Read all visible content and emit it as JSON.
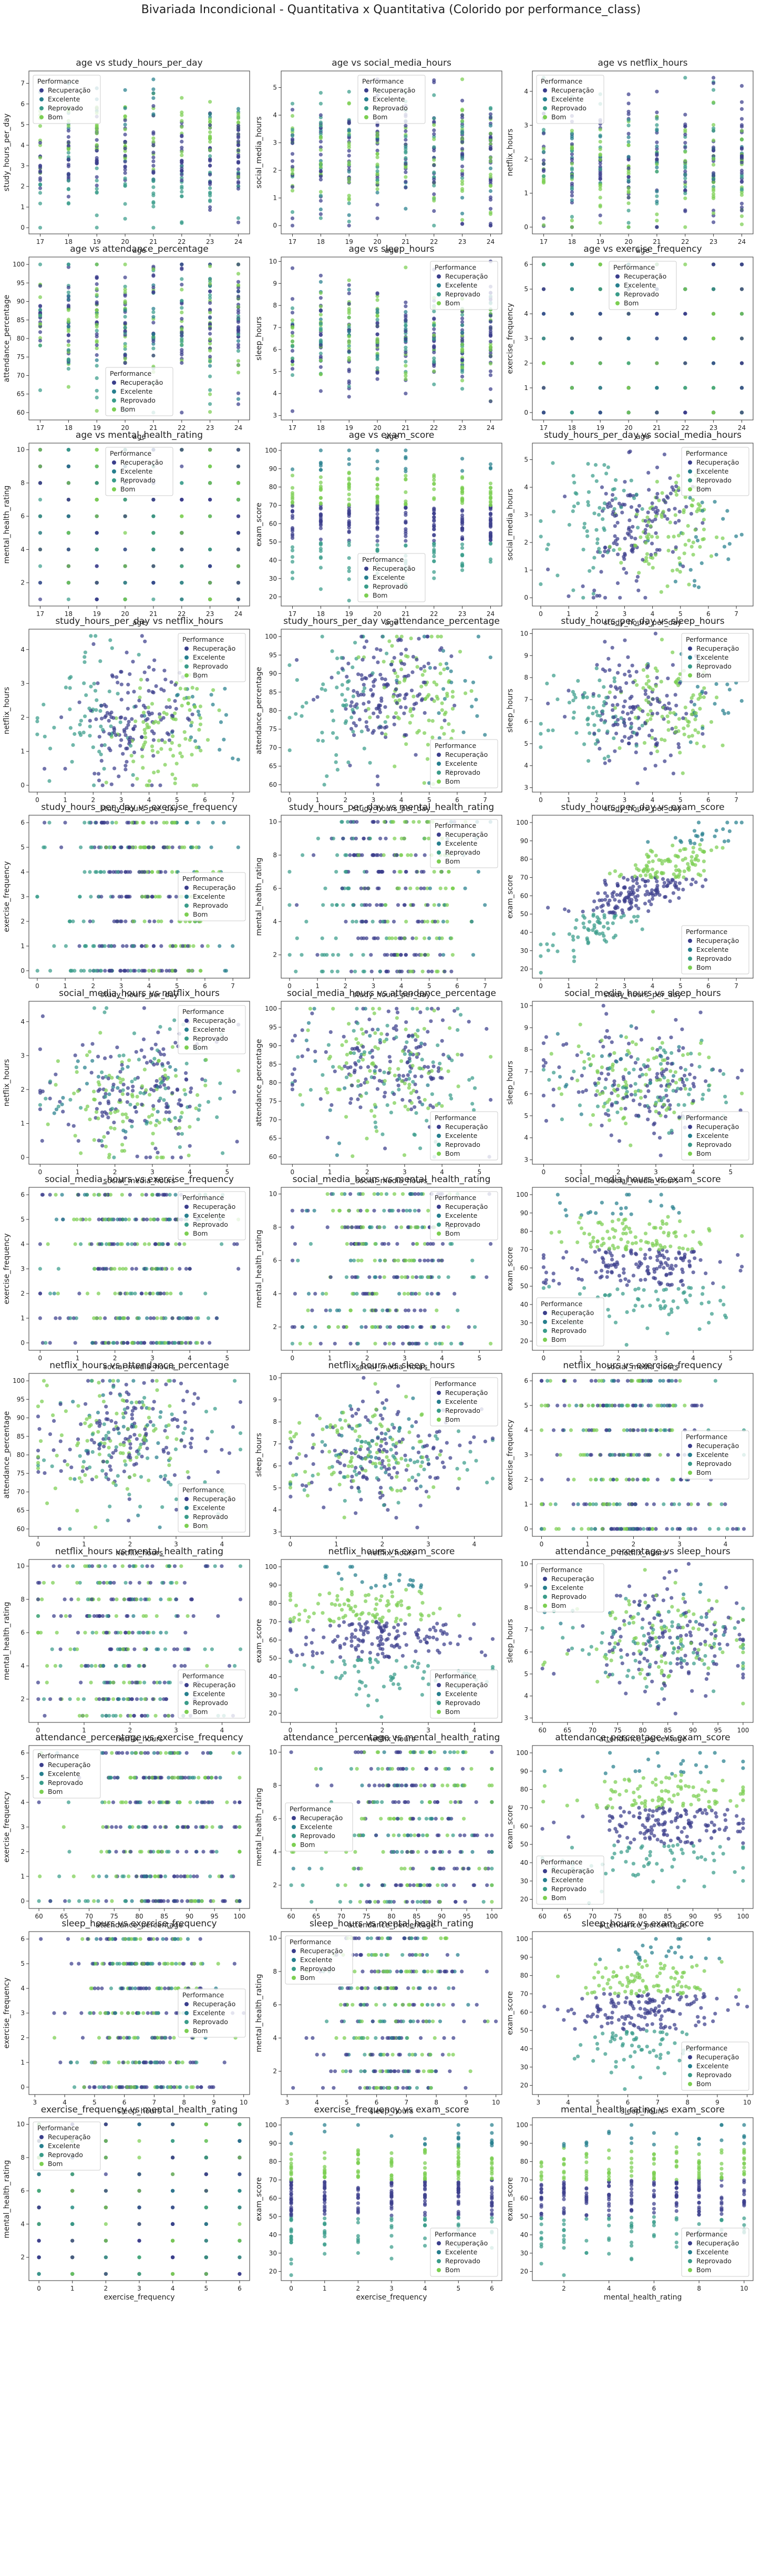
{
  "figure": {
    "title": "Bivariada Incondicional - Quantitativa x Quantitativa (Colorido por performance_class)"
  },
  "legend": {
    "title": "Performance",
    "classes": [
      "Recuperação",
      "Excelente",
      "Reprovado",
      "Bom"
    ],
    "colors": {
      "Recuperação": "#3b3f8c",
      "Excelente": "#277f8e",
      "Reprovado": "#3a9c8a",
      "Bom": "#7ccf52"
    }
  },
  "variables": {
    "age": {
      "ticks": [
        17,
        18,
        19,
        20,
        21,
        22,
        23,
        24
      ],
      "range": [
        16.6,
        24.4
      ]
    },
    "study_hours_per_day": {
      "ticks": [
        0,
        1,
        2,
        3,
        4,
        5,
        6,
        7
      ],
      "range": [
        -0.3,
        7.6
      ]
    },
    "social_media_hours": {
      "ticks": [
        0,
        1,
        2,
        3,
        4,
        5
      ],
      "range": [
        -0.3,
        5.6
      ]
    },
    "netflix_hours": {
      "ticks": [
        0,
        1,
        2,
        3,
        4
      ],
      "range": [
        -0.2,
        4.6
      ]
    },
    "attendance_percentage": {
      "ticks": [
        60,
        65,
        70,
        75,
        80,
        85,
        90,
        95,
        100
      ],
      "range": [
        58,
        102
      ]
    },
    "sleep_hours": {
      "ticks": [
        3,
        4,
        5,
        6,
        7,
        8,
        9,
        10
      ],
      "range": [
        2.8,
        10.2
      ]
    },
    "exercise_frequency": {
      "ticks": [
        0,
        1,
        2,
        3,
        4,
        5,
        6
      ],
      "range": [
        -0.3,
        6.3
      ]
    },
    "mental_health_rating": {
      "ticks": [
        2,
        4,
        6,
        8,
        10
      ],
      "range": [
        0.6,
        10.4
      ]
    },
    "exam_score": {
      "ticks": [
        20,
        30,
        40,
        50,
        60,
        70,
        80,
        90,
        100
      ],
      "range": [
        15,
        104
      ]
    }
  },
  "chart_data": [
    {
      "type": "scatter",
      "title": "age vs study_hours_per_day",
      "xlabel": "age",
      "ylabel": "study_hours_per_day",
      "x_var": "age",
      "y_var": "study_hours_per_day",
      "legend_position": "upper-left"
    },
    {
      "type": "scatter",
      "title": "age vs social_media_hours",
      "xlabel": "age",
      "ylabel": "social_media_hours",
      "x_var": "age",
      "y_var": "social_media_hours",
      "legend_position": "upper-center"
    },
    {
      "type": "scatter",
      "title": "age vs netflix_hours",
      "xlabel": "age",
      "ylabel": "netflix_hours",
      "x_var": "age",
      "y_var": "netflix_hours",
      "legend_position": "upper-left"
    },
    {
      "type": "scatter",
      "title": "age vs attendance_percentage",
      "xlabel": "age",
      "ylabel": "attendance_percentage",
      "x_var": "age",
      "y_var": "attendance_percentage",
      "legend_position": "lower-center"
    },
    {
      "type": "scatter",
      "title": "age vs sleep_hours",
      "xlabel": "age",
      "ylabel": "sleep_hours",
      "x_var": "age",
      "y_var": "sleep_hours",
      "legend_position": "upper-right"
    },
    {
      "type": "scatter",
      "title": "age vs exercise_frequency",
      "xlabel": "age",
      "ylabel": "exercise_frequency",
      "x_var": "age",
      "y_var": "exercise_frequency",
      "legend_position": "upper-center"
    },
    {
      "type": "scatter",
      "title": "age vs mental_health_rating",
      "xlabel": "age",
      "ylabel": "mental_health_rating",
      "x_var": "age",
      "y_var": "mental_health_rating",
      "legend_position": "upper-center"
    },
    {
      "type": "scatter",
      "title": "age vs exam_score",
      "xlabel": "age",
      "ylabel": "exam_score",
      "x_var": "age",
      "y_var": "exam_score",
      "legend_position": "lower-center"
    },
    {
      "type": "scatter",
      "title": "study_hours_per_day vs social_media_hours",
      "xlabel": "study_hours_per_day",
      "ylabel": "social_media_hours",
      "x_var": "study_hours_per_day",
      "y_var": "social_media_hours",
      "legend_position": "upper-right"
    },
    {
      "type": "scatter",
      "title": "study_hours_per_day vs netflix_hours",
      "xlabel": "study_hours_per_day",
      "ylabel": "netflix_hours",
      "x_var": "study_hours_per_day",
      "y_var": "netflix_hours",
      "legend_position": "upper-right"
    },
    {
      "type": "scatter",
      "title": "study_hours_per_day vs attendance_percentage",
      "xlabel": "study_hours_per_day",
      "ylabel": "attendance_percentage",
      "x_var": "study_hours_per_day",
      "y_var": "attendance_percentage",
      "legend_position": "lower-right"
    },
    {
      "type": "scatter",
      "title": "study_hours_per_day vs sleep_hours",
      "xlabel": "study_hours_per_day",
      "ylabel": "sleep_hours",
      "x_var": "study_hours_per_day",
      "y_var": "sleep_hours",
      "legend_position": "upper-right"
    },
    {
      "type": "scatter",
      "title": "study_hours_per_day vs exercise_frequency",
      "xlabel": "study_hours_per_day",
      "ylabel": "exercise_frequency",
      "x_var": "study_hours_per_day",
      "y_var": "exercise_frequency",
      "legend_position": "center-right"
    },
    {
      "type": "scatter",
      "title": "study_hours_per_day vs mental_health_rating",
      "xlabel": "study_hours_per_day",
      "ylabel": "mental_health_rating",
      "x_var": "study_hours_per_day",
      "y_var": "mental_health_rating",
      "legend_position": "upper-right"
    },
    {
      "type": "scatter",
      "title": "study_hours_per_day vs exam_score",
      "xlabel": "study_hours_per_day",
      "ylabel": "exam_score",
      "x_var": "study_hours_per_day",
      "y_var": "exam_score",
      "legend_position": "lower-right"
    },
    {
      "type": "scatter",
      "title": "social_media_hours vs netflix_hours",
      "xlabel": "social_media_hours",
      "ylabel": "netflix_hours",
      "x_var": "social_media_hours",
      "y_var": "netflix_hours",
      "legend_position": "upper-right"
    },
    {
      "type": "scatter",
      "title": "social_media_hours vs attendance_percentage",
      "xlabel": "social_media_hours",
      "ylabel": "attendance_percentage",
      "x_var": "social_media_hours",
      "y_var": "attendance_percentage",
      "legend_position": "lower-right"
    },
    {
      "type": "scatter",
      "title": "social_media_hours vs sleep_hours",
      "xlabel": "social_media_hours",
      "ylabel": "sleep_hours",
      "x_var": "social_media_hours",
      "y_var": "sleep_hours",
      "legend_position": "lower-right"
    },
    {
      "type": "scatter",
      "title": "social_media_hours vs exercise_frequency",
      "xlabel": "social_media_hours",
      "ylabel": "exercise_frequency",
      "x_var": "social_media_hours",
      "y_var": "exercise_frequency",
      "legend_position": "upper-right"
    },
    {
      "type": "scatter",
      "title": "social_media_hours vs mental_health_rating",
      "xlabel": "social_media_hours",
      "ylabel": "mental_health_rating",
      "x_var": "social_media_hours",
      "y_var": "mental_health_rating",
      "legend_position": "upper-right"
    },
    {
      "type": "scatter",
      "title": "social_media_hours vs exam_score",
      "xlabel": "social_media_hours",
      "ylabel": "exam_score",
      "x_var": "social_media_hours",
      "y_var": "exam_score",
      "legend_position": "lower-left"
    },
    {
      "type": "scatter",
      "title": "netflix_hours vs attendance_percentage",
      "xlabel": "netflix_hours",
      "ylabel": "attendance_percentage",
      "x_var": "netflix_hours",
      "y_var": "attendance_percentage",
      "legend_position": "lower-right"
    },
    {
      "type": "scatter",
      "title": "netflix_hours vs sleep_hours",
      "xlabel": "netflix_hours",
      "ylabel": "sleep_hours",
      "x_var": "netflix_hours",
      "y_var": "sleep_hours",
      "legend_position": "upper-right"
    },
    {
      "type": "scatter",
      "title": "netflix_hours vs exercise_frequency",
      "xlabel": "netflix_hours",
      "ylabel": "exercise_frequency",
      "x_var": "netflix_hours",
      "y_var": "exercise_frequency",
      "legend_position": "center-right"
    },
    {
      "type": "scatter",
      "title": "netflix_hours vs mental_health_rating",
      "xlabel": "netflix_hours",
      "ylabel": "mental_health_rating",
      "x_var": "netflix_hours",
      "y_var": "mental_health_rating",
      "legend_position": "lower-right"
    },
    {
      "type": "scatter",
      "title": "netflix_hours vs exam_score",
      "xlabel": "netflix_hours",
      "ylabel": "exam_score",
      "x_var": "netflix_hours",
      "y_var": "exam_score",
      "legend_position": "lower-right"
    },
    {
      "type": "scatter",
      "title": "attendance_percentage vs sleep_hours",
      "xlabel": "attendance_percentage",
      "ylabel": "sleep_hours",
      "x_var": "attendance_percentage",
      "y_var": "sleep_hours",
      "legend_position": "upper-left"
    },
    {
      "type": "scatter",
      "title": "attendance_percentage vs exercise_frequency",
      "xlabel": "attendance_percentage",
      "ylabel": "exercise_frequency",
      "x_var": "attendance_percentage",
      "y_var": "exercise_frequency",
      "legend_position": "upper-left"
    },
    {
      "type": "scatter",
      "title": "attendance_percentage vs mental_health_rating",
      "xlabel": "attendance_percentage",
      "ylabel": "mental_health_rating",
      "x_var": "attendance_percentage",
      "y_var": "mental_health_rating",
      "legend_position": "center-left"
    },
    {
      "type": "scatter",
      "title": "attendance_percentage vs exam_score",
      "xlabel": "attendance_percentage",
      "ylabel": "exam_score",
      "x_var": "attendance_percentage",
      "y_var": "exam_score",
      "legend_position": "lower-left"
    },
    {
      "type": "scatter",
      "title": "sleep_hours vs exercise_frequency",
      "xlabel": "sleep_hours",
      "ylabel": "exercise_frequency",
      "x_var": "sleep_hours",
      "y_var": "exercise_frequency",
      "legend_position": "center-right"
    },
    {
      "type": "scatter",
      "title": "sleep_hours vs mental_health_rating",
      "xlabel": "sleep_hours",
      "ylabel": "mental_health_rating",
      "x_var": "sleep_hours",
      "y_var": "mental_health_rating",
      "legend_position": "upper-left"
    },
    {
      "type": "scatter",
      "title": "sleep_hours vs exam_score",
      "xlabel": "sleep_hours",
      "ylabel": "exam_score",
      "x_var": "sleep_hours",
      "y_var": "exam_score",
      "legend_position": "lower-right"
    },
    {
      "type": "scatter",
      "title": "exercise_frequency vs mental_health_rating",
      "xlabel": "exercise_frequency",
      "ylabel": "mental_health_rating",
      "x_var": "exercise_frequency",
      "y_var": "mental_health_rating",
      "legend_position": "upper-left"
    },
    {
      "type": "scatter",
      "title": "exercise_frequency vs exam_score",
      "xlabel": "exercise_frequency",
      "ylabel": "exam_score",
      "x_var": "exercise_frequency",
      "y_var": "exam_score",
      "legend_position": "lower-right"
    },
    {
      "type": "scatter",
      "title": "mental_health_rating vs exam_score",
      "xlabel": "mental_health_rating",
      "ylabel": "exam_score",
      "x_var": "mental_health_rating",
      "y_var": "exam_score",
      "legend_position": "lower-right"
    }
  ]
}
